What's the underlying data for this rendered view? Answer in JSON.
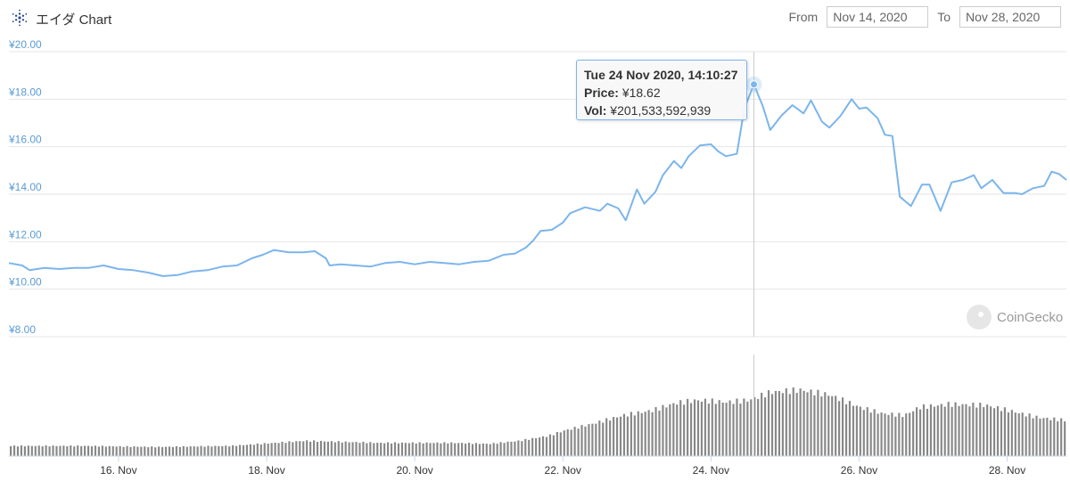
{
  "header": {
    "title": "エイダ Chart",
    "from_label": "From",
    "from_value": "Nov 14, 2020",
    "to_label": "To",
    "to_value": "Nov 28, 2020"
  },
  "tooltip": {
    "date": "Tue 24 Nov 2020, 14:10:27",
    "price_label": "Price:",
    "price_value": "¥18.62",
    "vol_label": "Vol:",
    "vol_value": "¥201,533,592,939"
  },
  "watermark": "CoinGecko",
  "colors": {
    "line": "#7cb5ec",
    "volume": "#888888",
    "axis_label": "#5b9bd5",
    "grid": "#e6e6e6"
  },
  "chart_data": {
    "type": "line",
    "title": "",
    "xlabel": "",
    "ylabel": "",
    "ylim": [
      8,
      20
    ],
    "yticks": [
      "¥20.00",
      "¥18.00",
      "¥16.00",
      "¥14.00",
      "¥12.00",
      "¥10.00",
      "¥8.00"
    ],
    "ytick_values": [
      20,
      18,
      16,
      14,
      12,
      10,
      8
    ],
    "xlim": [
      14.52,
      28.8
    ],
    "xticks": [
      "16. Nov",
      "18. Nov",
      "20. Nov",
      "22. Nov",
      "24. Nov",
      "26. Nov",
      "28. Nov"
    ],
    "xtick_values": [
      16,
      18,
      20,
      22,
      24,
      26,
      28
    ],
    "highlight": {
      "x": 24.58,
      "y": 18.62
    },
    "series": [
      {
        "values": [
          [
            14.52,
            11.1
          ],
          [
            14.7,
            11.0
          ],
          [
            14.8,
            10.8
          ],
          [
            15.0,
            10.9
          ],
          [
            15.2,
            10.85
          ],
          [
            15.4,
            10.9
          ],
          [
            15.6,
            10.9
          ],
          [
            15.8,
            11.0
          ],
          [
            16.0,
            10.85
          ],
          [
            16.2,
            10.8
          ],
          [
            16.4,
            10.7
          ],
          [
            16.6,
            10.55
          ],
          [
            16.8,
            10.6
          ],
          [
            17.0,
            10.75
          ],
          [
            17.2,
            10.8
          ],
          [
            17.4,
            10.95
          ],
          [
            17.6,
            11.0
          ],
          [
            17.8,
            11.3
          ],
          [
            17.95,
            11.45
          ],
          [
            18.1,
            11.65
          ],
          [
            18.3,
            11.55
          ],
          [
            18.5,
            11.55
          ],
          [
            18.65,
            11.6
          ],
          [
            18.8,
            11.3
          ],
          [
            18.85,
            11.0
          ],
          [
            19.0,
            11.05
          ],
          [
            19.2,
            11.0
          ],
          [
            19.4,
            10.95
          ],
          [
            19.6,
            11.1
          ],
          [
            19.8,
            11.15
          ],
          [
            20.0,
            11.05
          ],
          [
            20.2,
            11.15
          ],
          [
            20.4,
            11.1
          ],
          [
            20.6,
            11.05
          ],
          [
            20.8,
            11.15
          ],
          [
            21.0,
            11.2
          ],
          [
            21.2,
            11.45
          ],
          [
            21.35,
            11.5
          ],
          [
            21.5,
            11.75
          ],
          [
            21.6,
            12.05
          ],
          [
            21.7,
            12.45
          ],
          [
            21.85,
            12.5
          ],
          [
            22.0,
            12.8
          ],
          [
            22.1,
            13.2
          ],
          [
            22.3,
            13.45
          ],
          [
            22.5,
            13.3
          ],
          [
            22.6,
            13.6
          ],
          [
            22.75,
            13.4
          ],
          [
            22.85,
            12.9
          ],
          [
            23.0,
            14.2
          ],
          [
            23.1,
            13.6
          ],
          [
            23.25,
            14.1
          ],
          [
            23.35,
            14.8
          ],
          [
            23.5,
            15.4
          ],
          [
            23.6,
            15.1
          ],
          [
            23.7,
            15.6
          ],
          [
            23.85,
            16.05
          ],
          [
            24.0,
            16.1
          ],
          [
            24.1,
            15.8
          ],
          [
            24.2,
            15.6
          ],
          [
            24.35,
            15.7
          ],
          [
            24.45,
            17.6
          ],
          [
            24.58,
            18.62
          ],
          [
            24.7,
            17.7
          ],
          [
            24.8,
            16.7
          ],
          [
            24.95,
            17.3
          ],
          [
            25.1,
            17.75
          ],
          [
            25.25,
            17.4
          ],
          [
            25.35,
            17.95
          ],
          [
            25.5,
            17.05
          ],
          [
            25.6,
            16.8
          ],
          [
            25.75,
            17.3
          ],
          [
            25.9,
            18.0
          ],
          [
            26.0,
            17.6
          ],
          [
            26.1,
            17.65
          ],
          [
            26.25,
            17.2
          ],
          [
            26.35,
            16.5
          ],
          [
            26.45,
            16.45
          ],
          [
            26.55,
            13.9
          ],
          [
            26.7,
            13.5
          ],
          [
            26.85,
            14.4
          ],
          [
            26.95,
            14.4
          ],
          [
            27.1,
            13.3
          ],
          [
            27.25,
            14.5
          ],
          [
            27.4,
            14.6
          ],
          [
            27.55,
            14.8
          ],
          [
            27.65,
            14.25
          ],
          [
            27.8,
            14.6
          ],
          [
            27.95,
            14.05
          ],
          [
            28.1,
            14.05
          ],
          [
            28.2,
            14.0
          ],
          [
            28.35,
            14.25
          ],
          [
            28.5,
            14.35
          ],
          [
            28.6,
            14.95
          ],
          [
            28.7,
            14.85
          ],
          [
            28.8,
            14.6
          ]
        ]
      }
    ],
    "volume": {
      "values": [
        [
          14.52,
          0.1
        ],
        [
          15.5,
          0.1
        ],
        [
          16.5,
          0.09
        ],
        [
          17.5,
          0.1
        ],
        [
          18.5,
          0.15
        ],
        [
          19.5,
          0.13
        ],
        [
          20.5,
          0.13
        ],
        [
          21.0,
          0.12
        ],
        [
          21.4,
          0.15
        ],
        [
          21.8,
          0.2
        ],
        [
          22.0,
          0.25
        ],
        [
          22.4,
          0.32
        ],
        [
          22.8,
          0.4
        ],
        [
          23.2,
          0.45
        ],
        [
          23.5,
          0.52
        ],
        [
          23.8,
          0.55
        ],
        [
          24.2,
          0.53
        ],
        [
          24.5,
          0.55
        ],
        [
          24.8,
          0.63
        ],
        [
          25.2,
          0.65
        ],
        [
          25.6,
          0.6
        ],
        [
          26.0,
          0.48
        ],
        [
          26.3,
          0.42
        ],
        [
          26.6,
          0.4
        ],
        [
          26.8,
          0.48
        ],
        [
          27.2,
          0.51
        ],
        [
          27.7,
          0.5
        ],
        [
          28.0,
          0.45
        ],
        [
          28.4,
          0.38
        ],
        [
          28.8,
          0.35
        ]
      ]
    }
  }
}
